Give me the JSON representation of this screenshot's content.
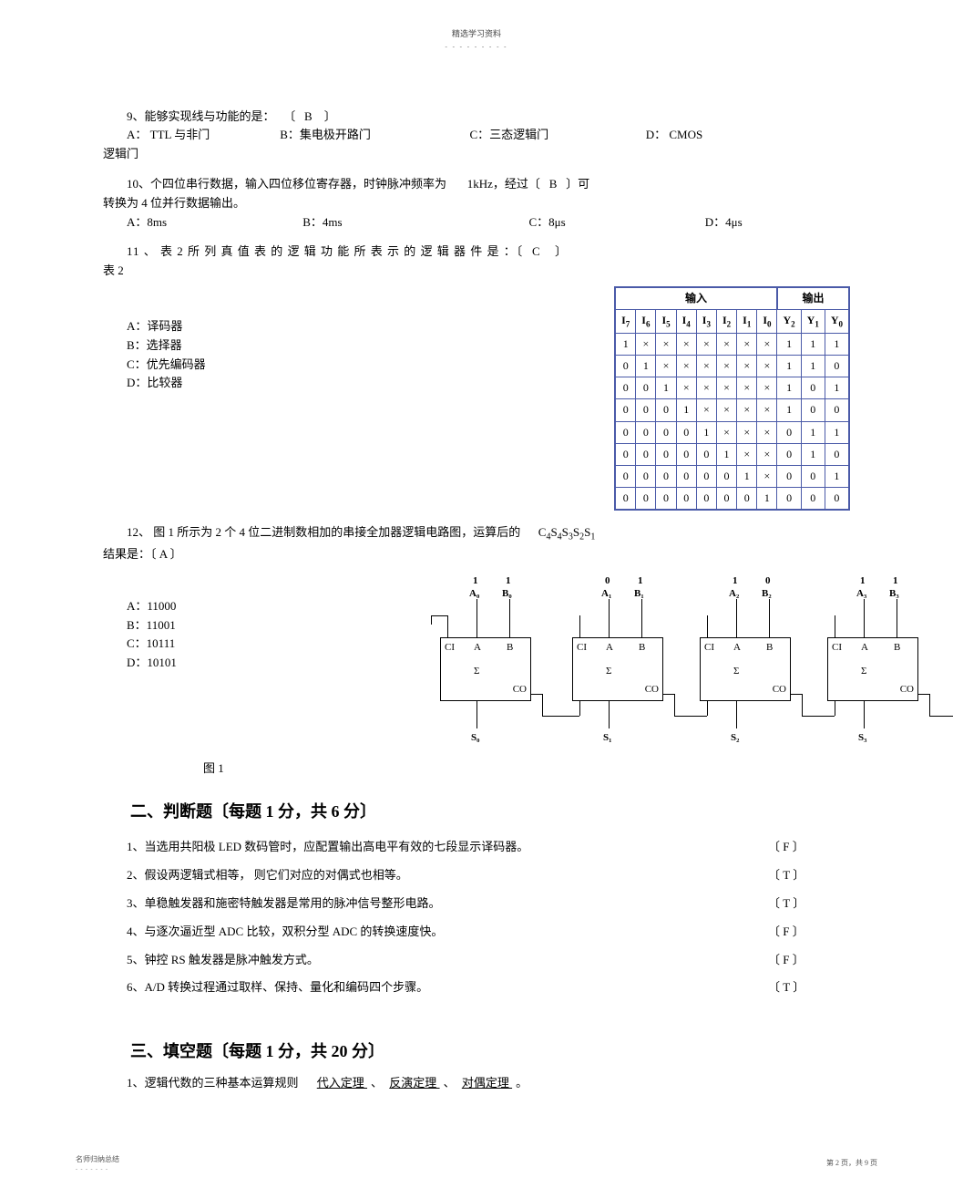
{
  "header": {
    "title": "精选学习资料",
    "dots": "- - - - - - - - -"
  },
  "q9": {
    "stem_pre": "9、能够实现线与功能的是：",
    "bracket_open": "〔",
    "answer": "B",
    "bracket_close": "〕",
    "opts": {
      "A_label": "A：",
      "A_text": "TTL 与非门",
      "B_label": "B：集电极开路门",
      "C_label": "C：三态逻辑门",
      "D_label": "D：",
      "D_text": "CMOS"
    },
    "trail": "逻辑门"
  },
  "q10": {
    "line1_a": "10、个四位串行数据，输入四位移位寄存器，时钟脉冲频率为",
    "line1_b": "1kHz，经过〔",
    "answer": "B",
    "line1_c": "〕可",
    "line2": "转换为  4 位并行数据输出。",
    "opts": {
      "A": "A：8ms",
      "B": "B：4ms",
      "C": "C：8μs",
      "D": "D：4μs"
    }
  },
  "q11": {
    "line1_a": "11 、 表  2 所 列 真 值 表 的 逻 辑 功 能 所 表 示 的 逻 辑 器 件 是 ：〔",
    "answer": "C",
    "line1_b": "〕",
    "line2": "表 2",
    "opts": {
      "A": "A：译码器",
      "B": "B：选择器",
      "C": "C：优先编码器",
      "D": "D：比较器"
    },
    "table": {
      "group_in": "输入",
      "group_out": "输出",
      "in_headers": [
        "I<sub>7</sub>",
        "I<sub>6</sub>",
        "I<sub>5</sub>",
        "I<sub>4</sub>",
        "I<sub>3</sub>",
        "I<sub>2</sub>",
        "I<sub>1</sub>",
        "I<sub>0</sub>"
      ],
      "out_headers": [
        "Y<sub>2</sub>",
        "Y<sub>1</sub>",
        "Y<sub>0</sub>"
      ],
      "rows": [
        [
          "1",
          "×",
          "×",
          "×",
          "×",
          "×",
          "×",
          "×",
          "1",
          "1",
          "1"
        ],
        [
          "0",
          "1",
          "×",
          "×",
          "×",
          "×",
          "×",
          "×",
          "1",
          "1",
          "0"
        ],
        [
          "0",
          "0",
          "1",
          "×",
          "×",
          "×",
          "×",
          "×",
          "1",
          "0",
          "1"
        ],
        [
          "0",
          "0",
          "0",
          "1",
          "×",
          "×",
          "×",
          "×",
          "1",
          "0",
          "0"
        ],
        [
          "0",
          "0",
          "0",
          "0",
          "1",
          "×",
          "×",
          "×",
          "0",
          "1",
          "1"
        ],
        [
          "0",
          "0",
          "0",
          "0",
          "0",
          "1",
          "×",
          "×",
          "0",
          "1",
          "0"
        ],
        [
          "0",
          "0",
          "0",
          "0",
          "0",
          "0",
          "1",
          "×",
          "0",
          "0",
          "1"
        ],
        [
          "0",
          "0",
          "0",
          "0",
          "0",
          "0",
          "0",
          "1",
          "0",
          "0",
          "0"
        ]
      ]
    }
  },
  "q12": {
    "line1_a": "12、 图 1 所示为  2 个 4 位二进制数相加的串接全加器逻辑电路图，运算后的",
    "line1_b": "C",
    "line1_c": "S",
    "subs": [
      "4",
      "4",
      "3",
      "2",
      "1"
    ],
    "result_label": "C₄S₄S₃S₂S₁",
    "line2": "结果是：〔  A      〕",
    "opts": {
      "A": "A：11000",
      "B": "B：11001",
      "C": "C：10111",
      "D": "D：10101"
    },
    "fig_label": "图 1",
    "diagram": {
      "top_bits": [
        "1",
        "1",
        "0",
        "1",
        "1",
        "0",
        "1",
        "1"
      ],
      "top_labels": [
        "A₀",
        "B₀",
        "A₁",
        "B₁",
        "A₂",
        "B₂",
        "A₃",
        "B₃"
      ],
      "port_CI": "CI",
      "port_A": "A",
      "port_B": "B",
      "port_S": "Σ",
      "port_CO": "CO",
      "s_labels": [
        "S₀",
        "S₁",
        "S₂",
        "S₃"
      ],
      "co_out": "CO"
    }
  },
  "section2": {
    "title": "二、判断题〔每题  1 分，共 6 分〕",
    "items": [
      {
        "n": "1、",
        "text": "当选用共阳极  LED 数码管时，应配置输出高电平有效的七段显示译码器。",
        "ans": "F"
      },
      {
        "n": "2、",
        "text": "假设两逻辑式相等， 则它们对应的对偶式也相等。",
        "ans": "T"
      },
      {
        "n": "3、",
        "text": "单稳触发器和施密特触发器是常用的脉冲信号整形电路。",
        "ans": "T"
      },
      {
        "n": "4、",
        "text": "与逐次逼近型  ADC 比较，双积分型  ADC 的转换速度快。",
        "ans": "F"
      },
      {
        "n": "5、",
        "text": "钟控 RS 触发器是脉冲触发方式。",
        "ans": "F"
      },
      {
        "n": "6、",
        "text": "A/D 转换过程通过取样、保持、量化和编码四个步骤。",
        "ans": "T"
      }
    ],
    "bl": "〔",
    "br": "〕"
  },
  "section3": {
    "title": "三、填空题〔每题  1 分，共 20 分〕",
    "q1_pre": "1、逻辑代数的三种基本运算规则",
    "q1_b1": "   代入定理         ",
    "q1_sep1": "、",
    "q1_b2": "   反演定理   ",
    "q1_sep2": "、",
    "q1_b3": "   对偶定理      ",
    "q1_end": "。"
  },
  "footer": {
    "left": "名师归纳总结",
    "left_dots": "- - - - - - -",
    "right": "第 2 页，共 9 页"
  }
}
